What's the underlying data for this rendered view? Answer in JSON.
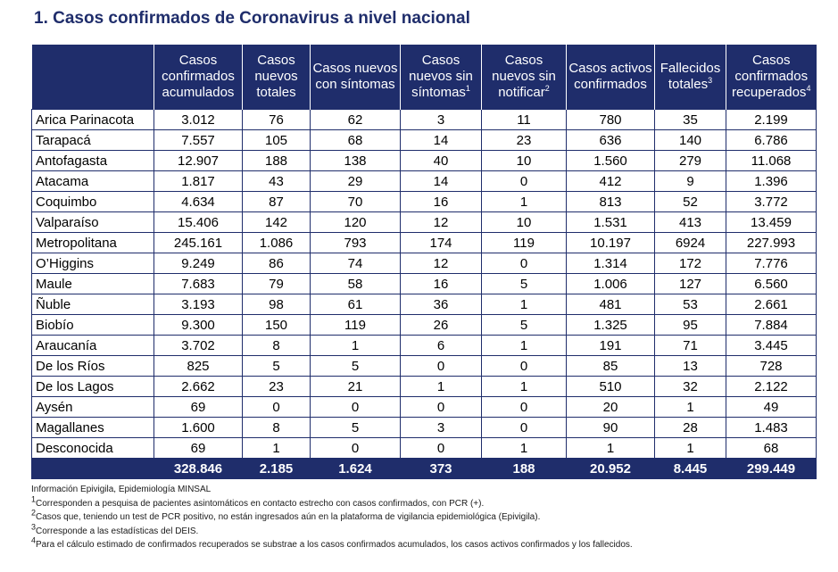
{
  "title": "1. Casos confirmados de Coronavirus a nivel nacional",
  "headers": [
    {
      "text": "",
      "sup": ""
    },
    {
      "text": "Casos confirmados acumulados",
      "sup": ""
    },
    {
      "text": "Casos nuevos totales",
      "sup": ""
    },
    {
      "text": "Casos nuevos con síntomas",
      "sup": ""
    },
    {
      "text": "Casos nuevos sin síntomas",
      "sup": "1"
    },
    {
      "text": "Casos nuevos sin notificar",
      "sup": "2"
    },
    {
      "text": "Casos activos confirmados",
      "sup": ""
    },
    {
      "text": "Fallecidos totales",
      "sup": "3"
    },
    {
      "text": "Casos confirmados recuperados",
      "sup": "4"
    }
  ],
  "rows": [
    [
      "Arica Parinacota",
      "3.012",
      "76",
      "62",
      "3",
      "11",
      "780",
      "35",
      "2.199"
    ],
    [
      "Tarapacá",
      "7.557",
      "105",
      "68",
      "14",
      "23",
      "636",
      "140",
      "6.786"
    ],
    [
      "Antofagasta",
      "12.907",
      "188",
      "138",
      "40",
      "10",
      "1.560",
      "279",
      "11.068"
    ],
    [
      "Atacama",
      "1.817",
      "43",
      "29",
      "14",
      "0",
      "412",
      "9",
      "1.396"
    ],
    [
      "Coquimbo",
      "4.634",
      "87",
      "70",
      "16",
      "1",
      "813",
      "52",
      "3.772"
    ],
    [
      "Valparaíso",
      "15.406",
      "142",
      "120",
      "12",
      "10",
      "1.531",
      "413",
      "13.459"
    ],
    [
      "Metropolitana",
      "245.161",
      "1.086",
      "793",
      "174",
      "119",
      "10.197",
      "6924",
      "227.993"
    ],
    [
      "O’Higgins",
      "9.249",
      "86",
      "74",
      "12",
      "0",
      "1.314",
      "172",
      "7.776"
    ],
    [
      "Maule",
      "7.683",
      "79",
      "58",
      "16",
      "5",
      "1.006",
      "127",
      "6.560"
    ],
    [
      "Ñuble",
      "3.193",
      "98",
      "61",
      "36",
      "1",
      "481",
      "53",
      "2.661"
    ],
    [
      "Biobío",
      "9.300",
      "150",
      "119",
      "26",
      "5",
      "1.325",
      "95",
      "7.884"
    ],
    [
      "Araucanía",
      "3.702",
      "8",
      "1",
      "6",
      "1",
      "191",
      "71",
      "3.445"
    ],
    [
      "De los Ríos",
      "825",
      "5",
      "5",
      "0",
      "0",
      "85",
      "13",
      "728"
    ],
    [
      "De los Lagos",
      "2.662",
      "23",
      "21",
      "1",
      "1",
      "510",
      "32",
      "2.122"
    ],
    [
      "Aysén",
      "69",
      "0",
      "0",
      "0",
      "0",
      "20",
      "1",
      "49"
    ],
    [
      "Magallanes",
      "1.600",
      "8",
      "5",
      "3",
      "0",
      "90",
      "28",
      "1.483"
    ],
    [
      "Desconocida",
      "69",
      "1",
      "0",
      "0",
      "1",
      "1",
      "1",
      "68"
    ]
  ],
  "totals": [
    "",
    "328.846",
    "2.185",
    "1.624",
    "373",
    "188",
    "20.952",
    "8.445",
    "299.449"
  ],
  "notes": [
    {
      "sup": "",
      "text": "Información Epivigila, Epidemiología MINSAL"
    },
    {
      "sup": "1",
      "text": "Corresponden a pesquisa de pacientes asintomáticos en contacto estrecho con casos confirmados, con PCR (+)."
    },
    {
      "sup": "2",
      "text": "Casos que, teniendo un test de PCR positivo, no están ingresados aún en la plataforma de vigilancia epidemiológica (Epivigila)."
    },
    {
      "sup": "3",
      "text": "Corresponde a las estadísticas del DEIS."
    },
    {
      "sup": "4",
      "text": "Para el cálculo estimado de confirmados recuperados se substrae a los casos confirmados acumulados, los casos activos confirmados y los fallecidos."
    }
  ],
  "colors": {
    "header_bg": "#1f2d6b",
    "title": "#1f2d6b"
  }
}
